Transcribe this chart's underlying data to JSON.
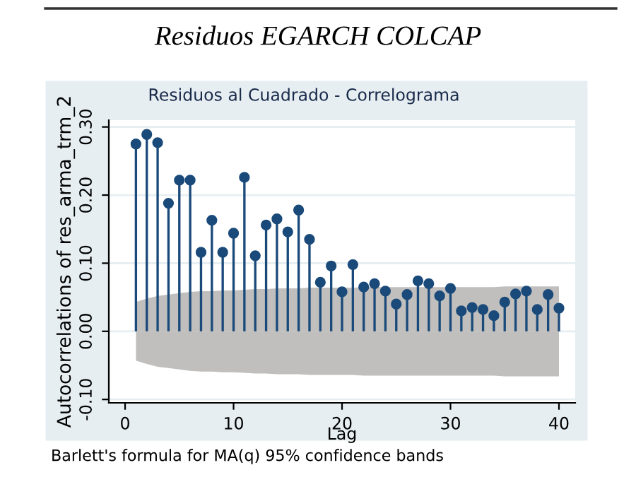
{
  "chart_data": {
    "type": "lollipop",
    "title": "Residuos EGARCH COLCAP",
    "subtitle": "Residuos al Cuadrado - Correlograma",
    "xlabel": "Lag",
    "ylabel": "Autocorrelations of res_arma_trm_2",
    "annotations": [
      "Barlett's formula for MA(q) 95% confidence bands"
    ],
    "x": [
      1,
      2,
      3,
      4,
      5,
      6,
      7,
      8,
      9,
      10,
      11,
      12,
      13,
      14,
      15,
      16,
      17,
      18,
      19,
      20,
      21,
      22,
      23,
      24,
      25,
      26,
      27,
      28,
      29,
      30,
      31,
      32,
      33,
      34,
      35,
      36,
      37,
      38,
      39,
      40
    ],
    "series": [
      {
        "type": "area",
        "color": "#c0bfbe",
        "values": [
          0.043,
          0.048,
          0.052,
          0.054,
          0.056,
          0.058,
          0.059,
          0.059,
          0.06,
          0.06,
          0.061,
          0.062,
          0.062,
          0.063,
          0.063,
          0.063,
          0.064,
          0.064,
          0.064,
          0.064,
          0.064,
          0.065,
          0.065,
          0.065,
          0.065,
          0.065,
          0.065,
          0.065,
          0.065,
          0.065,
          0.065,
          0.065,
          0.065,
          0.065,
          0.066,
          0.066,
          0.066,
          0.066,
          0.066,
          0.066
        ]
      },
      {
        "type": "area",
        "color": "#c0bfbe",
        "values": [
          -0.043,
          -0.048,
          -0.052,
          -0.054,
          -0.056,
          -0.058,
          -0.059,
          -0.059,
          -0.06,
          -0.06,
          -0.061,
          -0.062,
          -0.062,
          -0.063,
          -0.063,
          -0.063,
          -0.064,
          -0.064,
          -0.064,
          -0.064,
          -0.064,
          -0.065,
          -0.065,
          -0.065,
          -0.065,
          -0.065,
          -0.065,
          -0.065,
          -0.065,
          -0.065,
          -0.065,
          -0.065,
          -0.065,
          -0.065,
          -0.066,
          -0.066,
          -0.066,
          -0.066,
          -0.066,
          -0.066
        ]
      },
      {
        "color": "#1a4a7a",
        "marker": "circle",
        "values": [
          0.275,
          0.289,
          0.277,
          0.188,
          0.222,
          0.222,
          0.116,
          0.163,
          0.116,
          0.144,
          0.226,
          0.111,
          0.156,
          0.165,
          0.146,
          0.178,
          0.135,
          0.072,
          0.096,
          0.058,
          0.098,
          0.065,
          0.07,
          0.059,
          0.04,
          0.054,
          0.074,
          0.07,
          0.052,
          0.063,
          0.03,
          0.035,
          0.032,
          0.023,
          0.043,
          0.055,
          0.059,
          0.032,
          0.054,
          0.034
        ]
      }
    ],
    "xlim": [
      -1.5,
      41.5
    ],
    "ylim": [
      -0.105,
      0.31
    ],
    "xticks": [
      0,
      10,
      20,
      30,
      40
    ],
    "yticks": [
      {
        "value": -0.1,
        "label": "-0.10"
      },
      {
        "value": 0.0,
        "label": "0.00"
      },
      {
        "value": 0.1,
        "label": "0.10"
      },
      {
        "value": 0.2,
        "label": "0.20"
      },
      {
        "value": 0.3,
        "label": "0.30"
      }
    ],
    "grid": "y"
  }
}
